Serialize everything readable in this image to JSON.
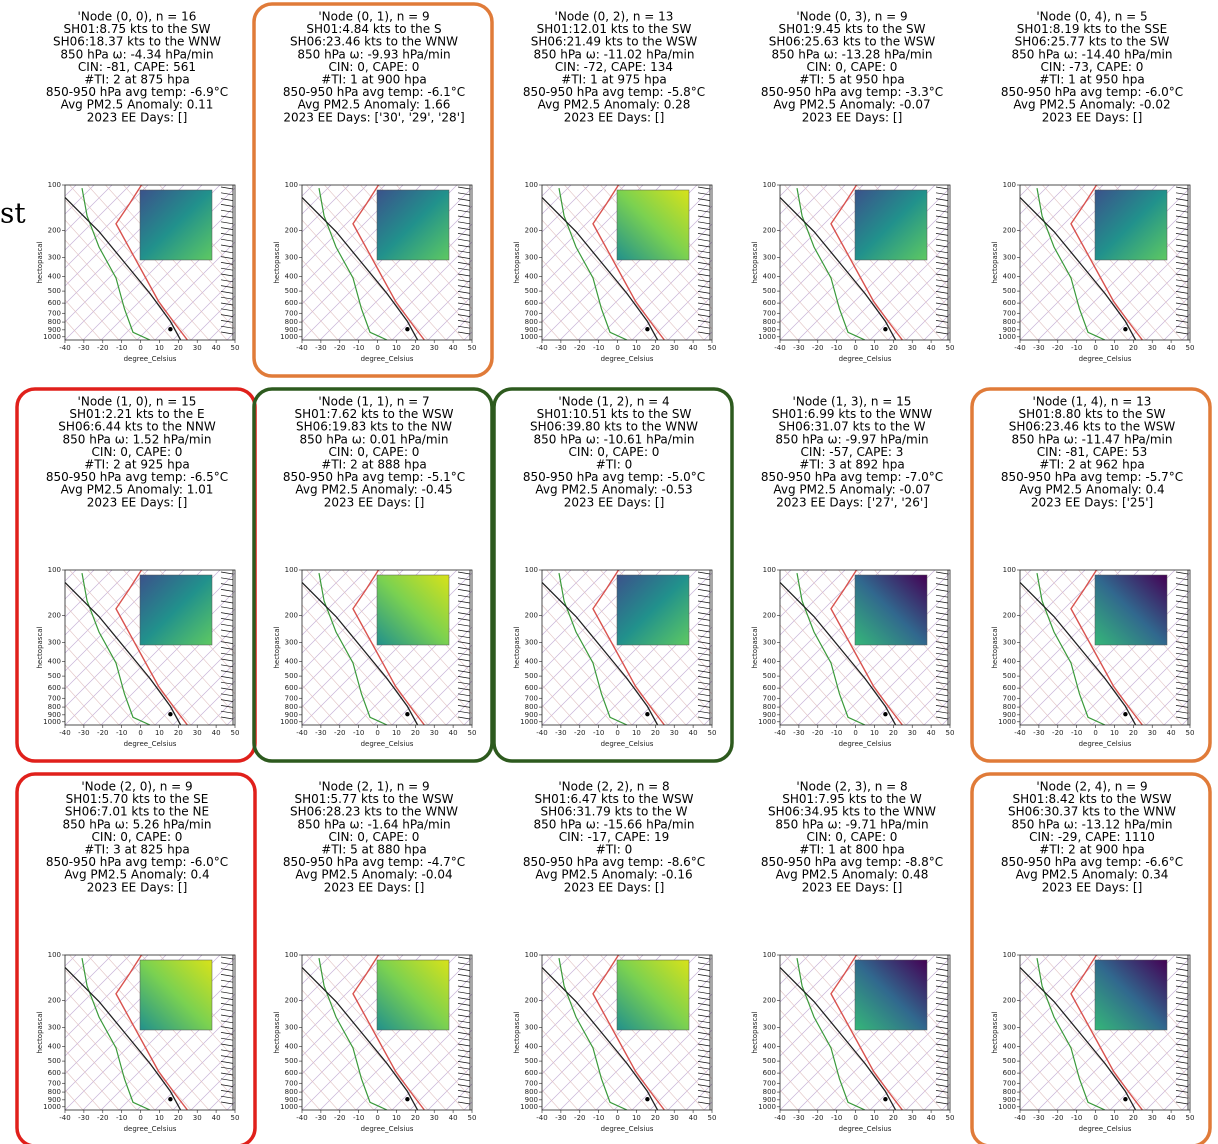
{
  "margin_text": "st",
  "axis": {
    "y_label": "hectopascal",
    "x_label": "degree_Celsius",
    "y_ticks": [
      100,
      200,
      300,
      400,
      500,
      600,
      700,
      800,
      900,
      1000
    ],
    "x_ticks": [
      -40,
      -30,
      -20,
      -10,
      0,
      10,
      20,
      30,
      40,
      50
    ]
  },
  "panels": [
    {
      "border": null,
      "lines": [
        "'Node (0, 0), n = 16",
        "SH01:8.75 kts to the SW",
        "SH06:18.37 kts to the WNW",
        "850 hPa ω: -4.34 hPa/min",
        "CIN: -81, CAPE: 561",
        "#TI: 2 at 875 hpa",
        "850-950 hPa avg temp: -6.9°C",
        "Avg PM2.5 Anomaly: 0.11",
        "2023 EE Days: []"
      ]
    },
    {
      "border": "#e07b39",
      "lines": [
        "'Node (0, 1), n = 9",
        "SH01:4.84 kts to the S",
        "SH06:23.46 kts to the WNW",
        "850 hPa ω: -9.93 hPa/min",
        "CIN: 0, CAPE: 0",
        "#TI: 1 at 900 hpa",
        "850-950 hPa avg temp: -6.1°C",
        "Avg PM2.5 Anomaly: 1.66",
        "2023 EE Days: ['30', '29', '28']"
      ]
    },
    {
      "border": null,
      "lines": [
        "'Node (0, 2), n = 13",
        "SH01:12.01 kts to the SW",
        "SH06:21.49 kts to the WSW",
        "850 hPa ω: -11.02 hPa/min",
        "CIN: -72, CAPE: 134",
        "#TI: 1 at 975 hpa",
        "850-950 hPa avg temp: -5.8°C",
        "Avg PM2.5 Anomaly: 0.28",
        "2023 EE Days: []"
      ]
    },
    {
      "border": null,
      "lines": [
        "'Node (0, 3), n = 9",
        "SH01:9.45 kts to the SW",
        "SH06:25.63 kts to the WSW",
        "850 hPa ω: -13.28 hPa/min",
        "CIN: 0, CAPE: 0",
        "#TI: 5 at 950 hpa",
        "850-950 hPa avg temp: -3.3°C",
        "Avg PM2.5 Anomaly: -0.07",
        "2023 EE Days: []"
      ]
    },
    {
      "border": null,
      "lines": [
        "'Node (0, 4), n = 5",
        "SH01:8.19 kts to the SSE",
        "SH06:25.77 kts to the SW",
        "850 hPa ω: -14.40 hPa/min",
        "CIN: -73, CAPE: 0",
        "#TI: 1 at 950 hpa",
        "850-950 hPa avg temp: -6.0°C",
        "Avg PM2.5 Anomaly: -0.02",
        "2023 EE Days: []"
      ]
    },
    {
      "border": "#e0201b",
      "lines": [
        "'Node (1, 0), n = 15",
        "SH01:2.21 kts to the E",
        "SH06:6.44 kts to the NNW",
        "850 hPa ω: 1.52 hPa/min",
        "CIN: 0, CAPE: 0",
        "#TI: 2 at 925 hpa",
        "850-950 hPa avg temp: -6.5°C",
        "Avg PM2.5 Anomaly: 1.01",
        "2023 EE Days: []"
      ]
    },
    {
      "border": "#2d5a1e",
      "lines": [
        "'Node (1, 1), n = 7",
        "SH01:7.62 kts to the WSW",
        "SH06:19.83 kts to the NW",
        "850 hPa ω: 0.01 hPa/min",
        "CIN: 0, CAPE: 0",
        "#TI: 2 at 888 hpa",
        "850-950 hPa avg temp: -5.1°C",
        "Avg PM2.5 Anomaly: -0.45",
        "2023 EE Days: []"
      ]
    },
    {
      "border": "#2d5a1e",
      "lines": [
        "'Node (1, 2), n = 4",
        "SH01:10.51 kts to the SW",
        "SH06:39.80 kts to the WNW",
        "850 hPa ω: -10.61 hPa/min",
        "CIN: 0, CAPE: 0",
        "#TI: 0",
        "850-950 hPa avg temp: -5.0°C",
        "Avg PM2.5 Anomaly: -0.53",
        "2023 EE Days: []"
      ]
    },
    {
      "border": null,
      "lines": [
        "'Node (1, 3), n = 15",
        "SH01:6.99 kts to the WNW",
        "SH06:31.07 kts to the W",
        "850 hPa ω: -9.97 hPa/min",
        "CIN: -57, CAPE: 3",
        "#TI: 3 at 892 hpa",
        "850-950 hPa avg temp: -7.0°C",
        "Avg PM2.5 Anomaly: -0.07",
        "2023 EE Days: ['27', '26']"
      ]
    },
    {
      "border": "#e07b39",
      "lines": [
        "'Node (1, 4), n = 13",
        "SH01:8.80 kts to the SW",
        "SH06:23.46 kts to the WSW",
        "850 hPa ω: -11.47 hPa/min",
        "CIN: -81, CAPE: 53",
        "#TI: 2 at 962 hpa",
        "850-950 hPa avg temp: -5.7°C",
        "Avg PM2.5 Anomaly: 0.4",
        "2023 EE Days: ['25']"
      ]
    },
    {
      "border": "#e0201b",
      "lines": [
        "'Node (2, 0), n = 9",
        "SH01:5.70 kts to the SE",
        "SH06:7.01 kts to the NE",
        "850 hPa ω: 5.26 hPa/min",
        "CIN: 0, CAPE: 0",
        "#TI: 3 at 825 hpa",
        "850-950 hPa avg temp: -6.0°C",
        "Avg PM2.5 Anomaly: 0.4",
        "2023 EE Days: []"
      ]
    },
    {
      "border": null,
      "lines": [
        "'Node (2, 1), n = 9",
        "SH01:5.77 kts to the WSW",
        "SH06:28.23 kts to the WNW",
        "850 hPa ω: -1.64 hPa/min",
        "CIN: 0, CAPE: 0",
        "#TI: 5 at 880 hpa",
        "850-950 hPa avg temp: -4.7°C",
        "Avg PM2.5 Anomaly: -0.04",
        "2023 EE Days: []"
      ]
    },
    {
      "border": null,
      "lines": [
        "'Node (2, 2), n = 8",
        "SH01:6.47 kts to the WSW",
        "SH06:31.79 kts to the W",
        "850 hPa ω: -15.66 hPa/min",
        "CIN: -17, CAPE: 19",
        "#TI: 0",
        "850-950 hPa avg temp: -8.6°C",
        "Avg PM2.5 Anomaly: -0.16",
        "2023 EE Days: []"
      ]
    },
    {
      "border": null,
      "lines": [
        "'Node (2, 3), n = 8",
        "SH01:7.95 kts to the W",
        "SH06:34.95 kts to the WNW",
        "850 hPa ω: -9.71 hPa/min",
        "CIN: 0, CAPE: 0",
        "#TI: 1 at 800 hpa",
        "850-950 hPa avg temp: -8.8°C",
        "Avg PM2.5 Anomaly: 0.48",
        "2023 EE Days: []"
      ]
    },
    {
      "border": "#e07b39",
      "lines": [
        "'Node (2, 4), n = 9",
        "SH01:8.42 kts to the WSW",
        "SH06:30.37 kts to the WNW",
        "850 hPa ω: -13.12 hPa/min",
        "CIN: -29, CAPE: 1110",
        "#TI: 2 at 900 hpa",
        "850-950 hPa avg temp: -6.6°C",
        "Avg PM2.5 Anomaly: 0.34",
        "2023 EE Days: []"
      ]
    }
  ]
}
